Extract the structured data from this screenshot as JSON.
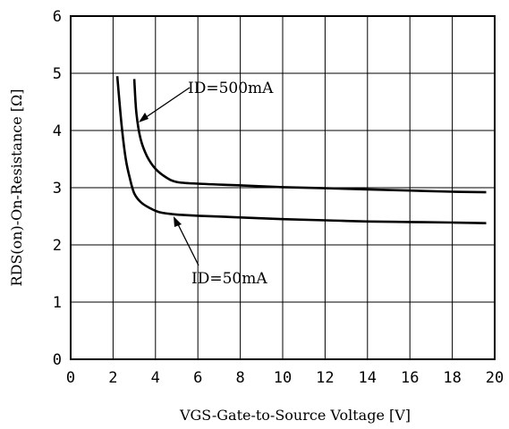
{
  "chart_data": {
    "type": "line",
    "xlabel": "VGS-Gate-to-Source Voltage [V]",
    "ylabel": "RDS(on)-On-Resistance [Ω]",
    "xlim": [
      0,
      20
    ],
    "ylim": [
      0,
      6
    ],
    "x_ticks": [
      "0",
      "2",
      "4",
      "6",
      "8",
      "10",
      "12",
      "14",
      "16",
      "18",
      "20"
    ],
    "y_ticks": [
      "0",
      "1",
      "2",
      "3",
      "4",
      "5",
      "6"
    ],
    "grid": true,
    "series": [
      {
        "name": "ID=500mA",
        "x": [
          3.0,
          3.1,
          3.3,
          3.6,
          4.0,
          4.5,
          5.0,
          6.0,
          8.0,
          10.0,
          12.0,
          14.0,
          16.0,
          18.0,
          19.6
        ],
        "y": [
          4.9,
          4.3,
          3.85,
          3.55,
          3.33,
          3.18,
          3.1,
          3.07,
          3.04,
          3.01,
          2.99,
          2.97,
          2.95,
          2.93,
          2.92
        ]
      },
      {
        "name": "ID=50mA",
        "x": [
          2.2,
          2.4,
          2.6,
          2.8,
          3.0,
          3.3,
          3.7,
          4.2,
          5.0,
          6.0,
          8.0,
          10.0,
          12.0,
          14.0,
          16.0,
          18.0,
          19.6
        ],
        "y": [
          4.95,
          4.1,
          3.5,
          3.15,
          2.9,
          2.75,
          2.65,
          2.57,
          2.53,
          2.51,
          2.48,
          2.45,
          2.43,
          2.41,
          2.4,
          2.39,
          2.38
        ]
      }
    ],
    "annotations": [
      {
        "text": "ID=500mA"
      },
      {
        "text": "ID=50mA"
      }
    ]
  }
}
